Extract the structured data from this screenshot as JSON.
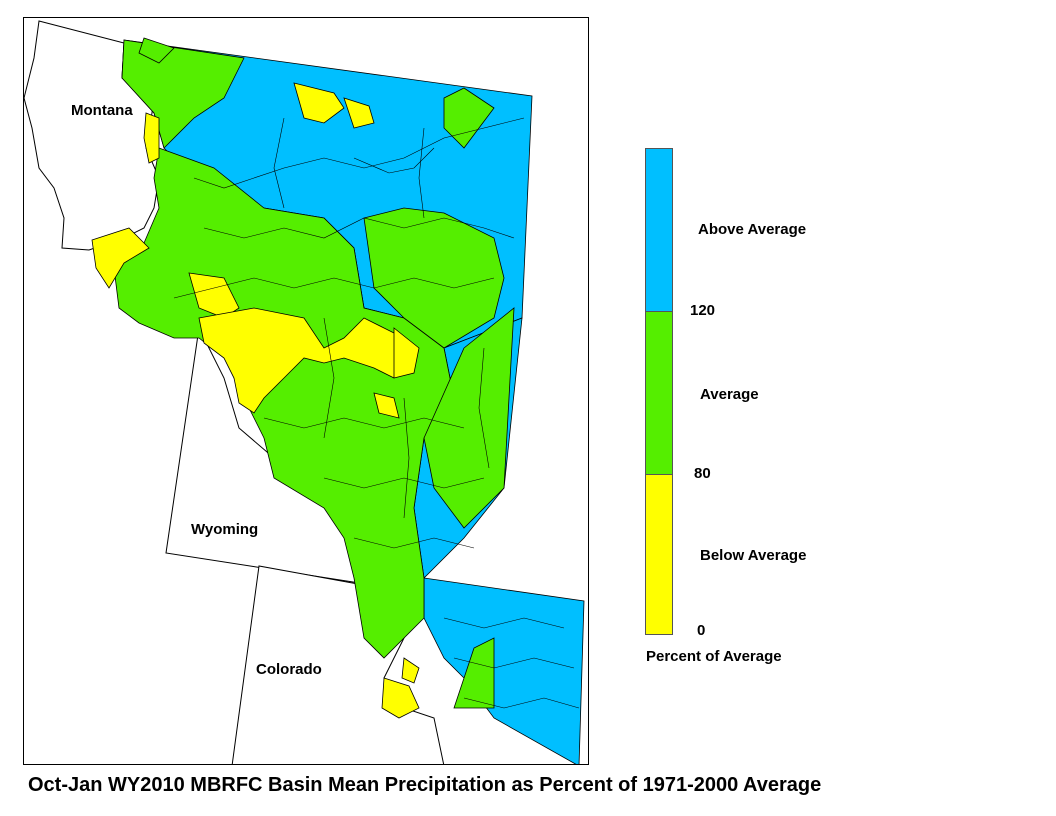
{
  "map": {
    "states": {
      "montana": "Montana",
      "wyoming": "Wyoming",
      "colorado": "Colorado"
    },
    "colors": {
      "above": "#00bfff",
      "average": "#55ee00",
      "below": "#ffff00",
      "outline": "#000000"
    }
  },
  "legend": {
    "above_label": "Above Average",
    "average_label": "Average",
    "below_label": "Below Average",
    "tick_120": "120",
    "tick_80": "80",
    "tick_0": "0",
    "units": "Percent of Average"
  },
  "caption": "Oct-Jan WY2010 MBRFC Basin Mean Precipitation as Percent of 1971-2000 Average"
}
